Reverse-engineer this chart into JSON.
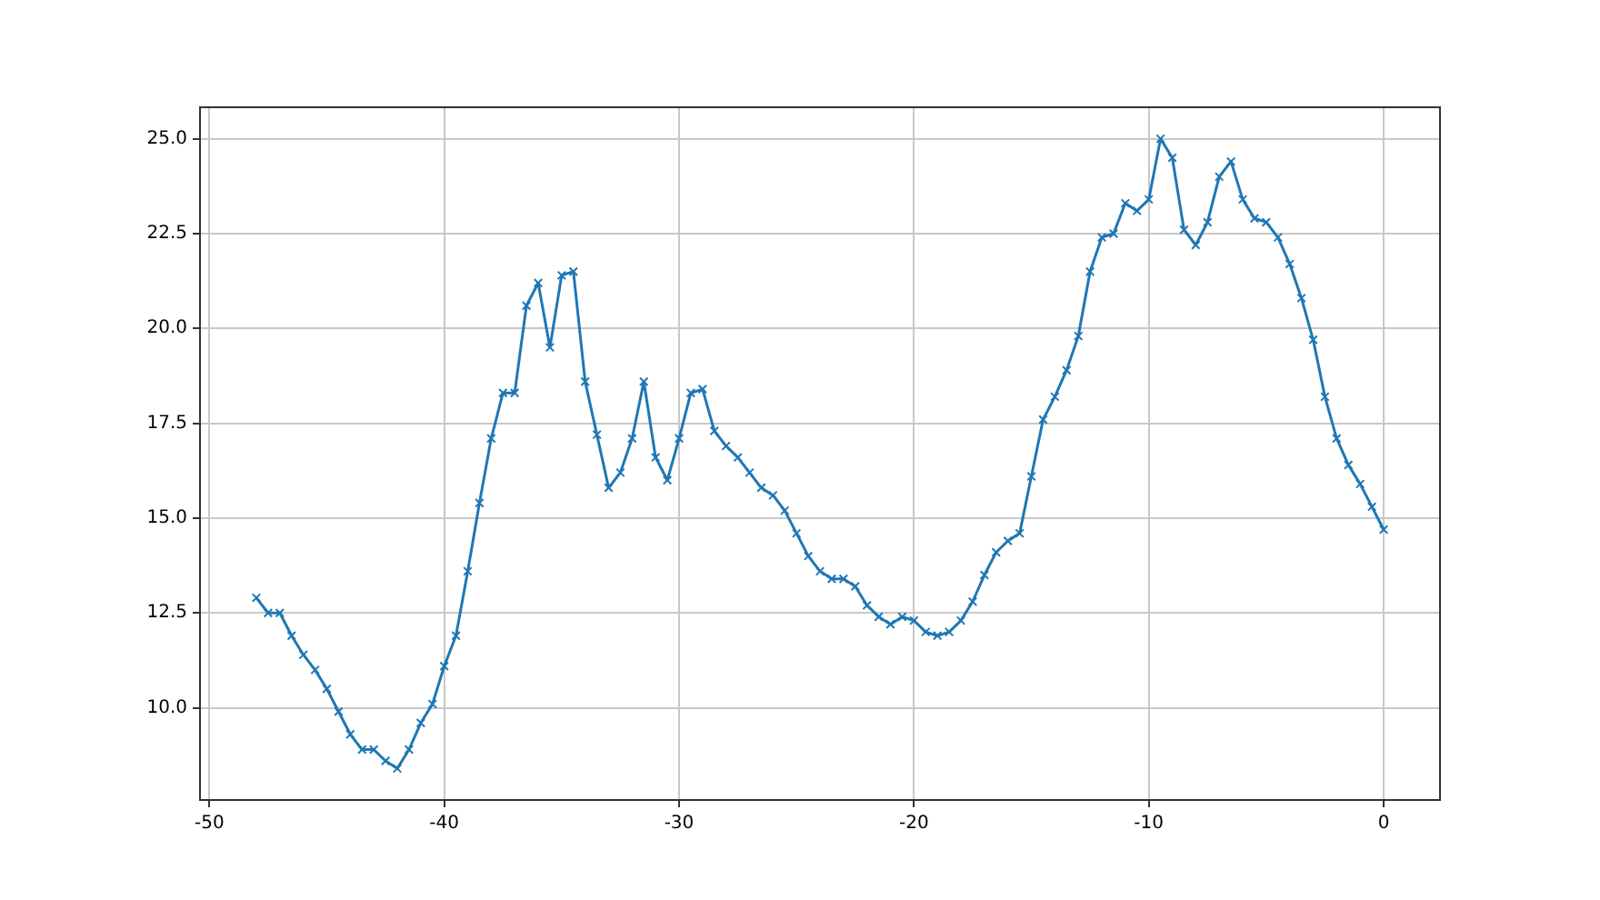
{
  "chart_data": {
    "type": "line",
    "x": [
      -48,
      -47.5,
      -47,
      -46.5,
      -46,
      -45.5,
      -45,
      -44.5,
      -44,
      -43.5,
      -43,
      -42.5,
      -42,
      -41.5,
      -41,
      -40.5,
      -40,
      -39.5,
      -39,
      -38.5,
      -38,
      -37.5,
      -37,
      -36.5,
      -36,
      -35.5,
      -35,
      -34.5,
      -34,
      -33.5,
      -33,
      -32.5,
      -32,
      -31.5,
      -31,
      -30.5,
      -30,
      -29.5,
      -29,
      -28.5,
      -28,
      -27.5,
      -27,
      -26.5,
      -26,
      -25.5,
      -25,
      -24.5,
      -24,
      -23.5,
      -23,
      -22.5,
      -22,
      -21.5,
      -21,
      -20.5,
      -20,
      -19.5,
      -19,
      -18.5,
      -18,
      -17.5,
      -17,
      -16.5,
      -16,
      -15.5,
      -15,
      -14.5,
      -14,
      -13.5,
      -13,
      -12.5,
      -12,
      -11.5,
      -11,
      -10.5,
      -10,
      -9.5,
      -9,
      -8.5,
      -8,
      -7.5,
      -7,
      -6.5,
      -6,
      -5.5,
      -5,
      -4.5,
      -4,
      -3.5,
      -3,
      -2.5,
      -2,
      -1.5,
      -1,
      -0.5,
      0
    ],
    "series": [
      {
        "color": "#1f77b4",
        "values": [
          12.9,
          12.5,
          12.5,
          11.9,
          11.4,
          11.0,
          10.5,
          9.9,
          9.3,
          8.9,
          8.9,
          8.6,
          8.4,
          8.9,
          9.6,
          10.1,
          11.1,
          11.9,
          13.6,
          15.4,
          17.1,
          18.3,
          18.3,
          20.6,
          21.2,
          19.5,
          21.4,
          21.5,
          18.6,
          17.2,
          15.8,
          16.2,
          17.1,
          18.6,
          16.6,
          16.0,
          17.1,
          18.3,
          18.4,
          17.3,
          16.9,
          16.6,
          16.2,
          15.8,
          15.6,
          15.2,
          14.6,
          14.0,
          13.6,
          13.4,
          13.4,
          13.2,
          12.7,
          12.4,
          12.2,
          12.4,
          12.3,
          12.0,
          11.9,
          12.0,
          12.3,
          12.8,
          13.5,
          14.1,
          14.4,
          14.6,
          16.1,
          17.6,
          18.2,
          18.9,
          19.8,
          21.5,
          22.4,
          22.5,
          23.3,
          23.1,
          23.4,
          25.0,
          24.5,
          22.6,
          22.2,
          22.8,
          24.0,
          24.4,
          23.4,
          22.9,
          22.8,
          22.4,
          21.7,
          20.8,
          19.7,
          18.2,
          17.1,
          16.4,
          15.9,
          15.3,
          14.7
        ]
      }
    ],
    "xlim": [
      -50.4,
      2.4
    ],
    "xticks": [
      -50,
      -40,
      -30,
      -20,
      -10,
      0
    ],
    "ylim": [
      7.57,
      25.83
    ],
    "yticks": [
      {
        "value": 10,
        "label": "10.0"
      },
      {
        "value": 12.5,
        "label": "12.5"
      },
      {
        "value": 15,
        "label": "15.0"
      },
      {
        "value": 17.5,
        "label": "17.5"
      },
      {
        "value": 20,
        "label": "20.0"
      },
      {
        "value": 22.5,
        "label": "22.5"
      },
      {
        "value": 25,
        "label": "25.0"
      }
    ],
    "grid": true,
    "marker": "cross",
    "line_style": "solid",
    "legend": false
  }
}
